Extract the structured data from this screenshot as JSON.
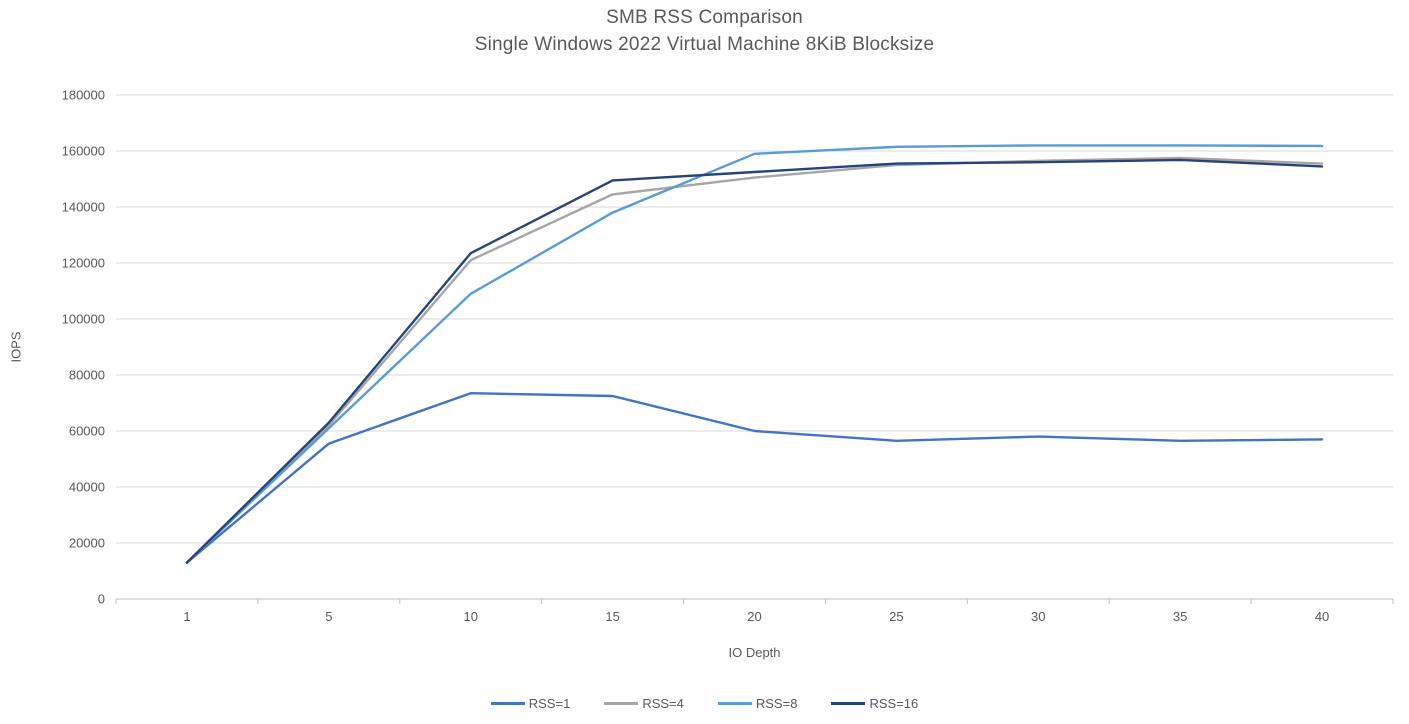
{
  "chart_data": {
    "type": "line",
    "title": "SMB RSS Comparison",
    "subtitle": "Single Windows 2022 Virtual Machine 8KiB Blocksize",
    "xlabel": "IO Depth",
    "ylabel": "IOPS",
    "ylim": [
      0,
      180000
    ],
    "y_ticks": [
      0,
      20000,
      40000,
      60000,
      80000,
      100000,
      120000,
      140000,
      160000,
      180000
    ],
    "grid": true,
    "legend_position": "bottom",
    "categories": [
      1,
      5,
      10,
      15,
      20,
      25,
      30,
      35,
      40
    ],
    "series": [
      {
        "name": "RSS=1",
        "color": "#4472C4",
        "values": [
          13000,
          55500,
          73500,
          72500,
          60000,
          56500,
          58000,
          56500,
          57000
        ]
      },
      {
        "name": "RSS=4",
        "color": "#A6A6A6",
        "values": [
          13000,
          62000,
          121000,
          144500,
          150500,
          155000,
          156500,
          157500,
          155500
        ]
      },
      {
        "name": "RSS=8",
        "color": "#5B9BD5",
        "values": [
          13000,
          61000,
          109000,
          138000,
          159000,
          161500,
          162000,
          162000,
          161800
        ]
      },
      {
        "name": "RSS=16",
        "color": "#264478",
        "values": [
          13000,
          63000,
          123500,
          149500,
          152500,
          155500,
          156000,
          156800,
          154500
        ]
      }
    ],
    "colors": {
      "gridline": "#D9D9D9",
      "axis_line": "#BFBFBF",
      "tick_text": "#595959",
      "title_text": "#595959"
    }
  }
}
